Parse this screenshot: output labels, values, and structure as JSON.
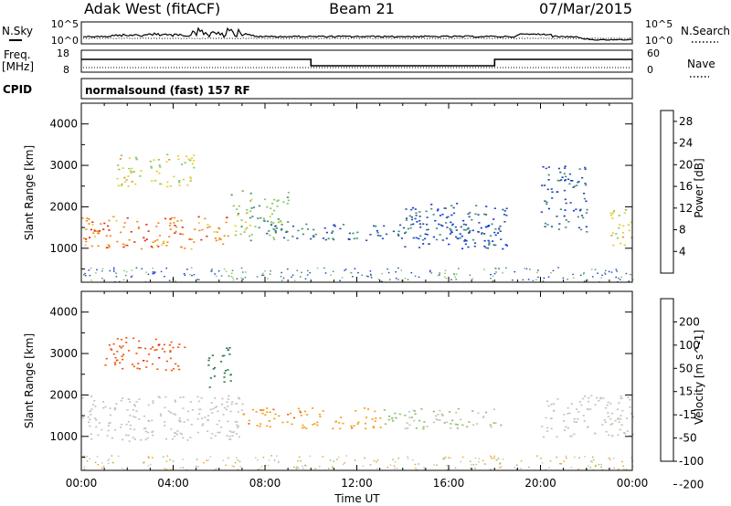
{
  "chart_data": [
    {
      "type": "header",
      "site": "Adak West (fitACF)",
      "beam": "Beam 21",
      "date": "07/Mar/2015",
      "panels": {
        "noise": {
          "left_label": "N.Sky",
          "right_label": "N.Search",
          "left_ticks": [
            "10^5",
            "10^0"
          ],
          "right_ticks": [
            "10^5",
            "10^0"
          ]
        },
        "freq": {
          "left_label_1": "Freq.",
          "left_label_2": "[MHz]",
          "right_label": "Nave",
          "left_ticks": [
            "18",
            "8"
          ],
          "right_ticks": [
            "60",
            "0"
          ],
          "freq_steps": [
            {
              "start": "00:00",
              "end": "10:00",
              "level": "high"
            },
            {
              "start": "10:00",
              "end": "18:00",
              "level": "low"
            },
            {
              "start": "18:00",
              "end": "24:00",
              "level": "high"
            }
          ]
        },
        "cpid": {
          "label": "CPID",
          "text": "normalsound (fast) 157 RF"
        }
      }
    },
    {
      "type": "heatmap",
      "ylabel": "Slant Range [km]",
      "yticks": [
        "4000",
        "3000",
        "2000",
        "1000"
      ],
      "ylim": [
        180,
        4500
      ],
      "xlim": [
        0,
        24
      ],
      "colorbar": {
        "label": "Power [dB]",
        "ticks": [
          "28",
          "24",
          "20",
          "16",
          "12",
          "8",
          "4"
        ],
        "range": [
          0,
          30
        ],
        "colors": [
          "#1133ee",
          "#2a4fa5",
          "#3f8f6e",
          "#88c466",
          "#e8cc30",
          "#f08c1a",
          "#e82a10"
        ]
      },
      "regions": [
        {
          "t0": 0.0,
          "t1": 6.5,
          "r0": 1000,
          "r1": 1800,
          "value": 24
        },
        {
          "t0": 1.5,
          "t1": 5.0,
          "r0": 2500,
          "r1": 3300,
          "value": 18
        },
        {
          "t0": 6.5,
          "t1": 9.0,
          "r0": 1200,
          "r1": 2400,
          "value": 14
        },
        {
          "t0": 8.0,
          "t1": 18.5,
          "r0": 1200,
          "r1": 1600,
          "value": 8
        },
        {
          "t0": 14.0,
          "t1": 18.5,
          "r0": 1000,
          "r1": 2100,
          "value": 6
        },
        {
          "t0": 20.0,
          "t1": 22.0,
          "r0": 1400,
          "r1": 3000,
          "value": 7
        },
        {
          "t0": 23.0,
          "t1": 24.0,
          "r0": 1000,
          "r1": 2000,
          "value": 18
        }
      ]
    },
    {
      "type": "heatmap",
      "ylabel": "Slant Range [km]",
      "xlabel": "Time UT",
      "xticks": [
        "00:00",
        "04:00",
        "08:00",
        "12:00",
        "16:00",
        "20:00",
        "00:00"
      ],
      "yticks": [
        "4000",
        "3000",
        "2000",
        "1000"
      ],
      "ylim": [
        180,
        4500
      ],
      "xlim": [
        0,
        24
      ],
      "colorbar": {
        "label": "Velocity [m s^-1]",
        "ticks": [
          "200",
          "100",
          "50",
          "15",
          "-15",
          "-50",
          "-100",
          "-200"
        ],
        "range": [
          -250,
          250
        ],
        "colors": [
          "#dd1a0e",
          "#f05a10",
          "#f5a01a",
          "#c4c4bc",
          "#88c466",
          "#2a7a4a",
          "#1a3a9e"
        ]
      },
      "regions": [
        {
          "t0": 0.0,
          "t1": 7.0,
          "r0": 900,
          "r1": 2000,
          "value": 0
        },
        {
          "t0": 1.0,
          "t1": 4.5,
          "r0": 2600,
          "r1": 3400,
          "value": -150
        },
        {
          "t0": 5.5,
          "t1": 6.5,
          "r0": 2200,
          "r1": 3200,
          "value": 150
        },
        {
          "t0": 7.0,
          "t1": 13.0,
          "r0": 1200,
          "r1": 1700,
          "value": -80
        },
        {
          "t0": 13.0,
          "t1": 18.5,
          "r0": 1200,
          "r1": 1700,
          "value": 40
        },
        {
          "t0": 20.0,
          "t1": 24.0,
          "r0": 1000,
          "r1": 2000,
          "value": 0
        }
      ]
    }
  ]
}
